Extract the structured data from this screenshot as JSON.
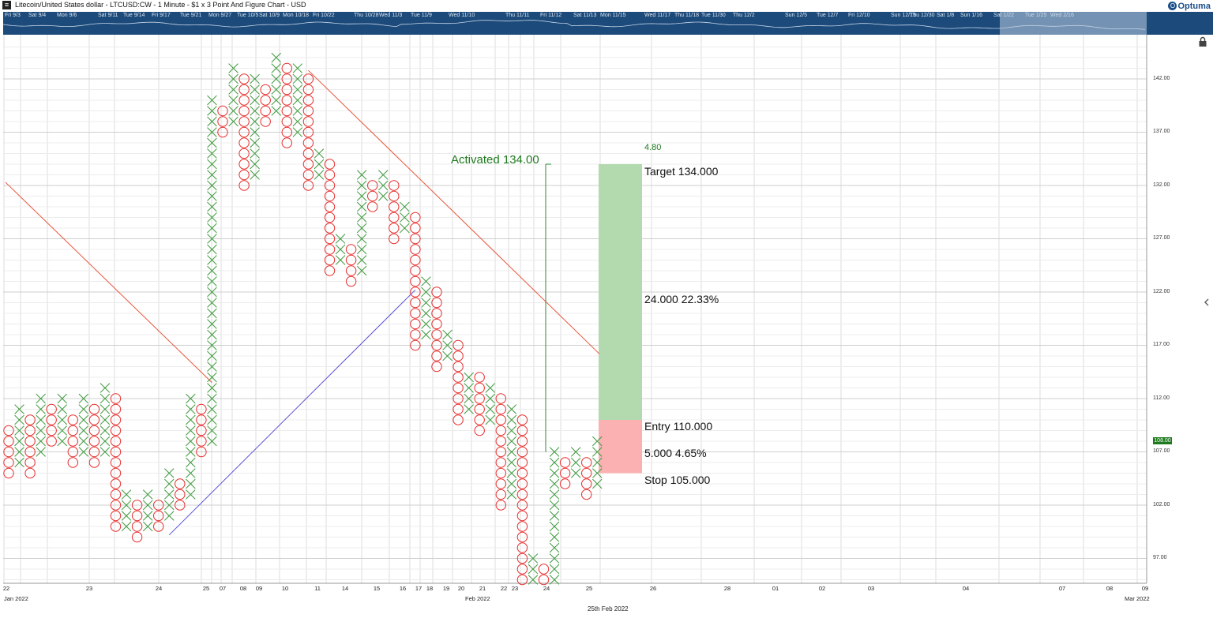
{
  "header": {
    "title": "Litecoin/United States dollar - LTCUSD:CW - 1 Minute - $1 x 3 Point And Figure Chart - USD",
    "brand": "Optuma",
    "app_icon": "menu-icon"
  },
  "navigator": {
    "dates": [
      "Fri 9/3",
      "Sat 9/4",
      "Mon 9/6",
      "Sat 9/11",
      "Tue 9/14",
      "Fri 9/17",
      "Tue 9/21",
      "Mon 9/27",
      "Tue 10/5",
      "Sat 10/9",
      "Mon 10/18",
      "Fri 10/22",
      "Thu 10/28",
      "Wed 11/3",
      "Tue 11/9",
      "Wed 11/10",
      "Thu 11/11",
      "Fri 11/12",
      "Sat 11/13",
      "Mon 11/15",
      "Wed 11/17",
      "Thu 11/18",
      "Tue 11/30",
      "Thu 12/2",
      "Sun 12/5",
      "Tue 12/7",
      "Fri 12/10",
      "Sun 12/19",
      "Thu 12/30",
      "Sat 1/8",
      "Sun 1/16",
      "Sat 1/22",
      "Tue 1/25",
      "Wed 2/16"
    ]
  },
  "chart_data": {
    "type": "point_and_figure",
    "symbol": "LTCUSD:CW",
    "box_size": 1,
    "reversal": 3,
    "ylim": [
      95,
      145
    ],
    "y_ticks": [
      97.0,
      102.0,
      107.0,
      112.0,
      117.0,
      122.0,
      127.0,
      132.0,
      137.0,
      142.0
    ],
    "x_tick_labels": [
      "22",
      "23",
      "24",
      "25",
      "07",
      "08",
      "09",
      "10",
      "11",
      "14",
      "15",
      "16",
      "17",
      "18",
      "19",
      "20",
      "21",
      "22",
      "23",
      "24",
      "25",
      "26",
      "28",
      "01",
      "02",
      "03",
      "04",
      "07",
      "08",
      "09"
    ],
    "month_labels": [
      "Jan 2022",
      "Feb 2022",
      "Mar 2022"
    ],
    "date_caption": "25th Feb 2022",
    "last_price": "108.00",
    "columns": [
      {
        "type": "O",
        "high": 109,
        "low": 105
      },
      {
        "type": "X",
        "high": 111,
        "low": 106
      },
      {
        "type": "O",
        "high": 110,
        "low": 105
      },
      {
        "type": "X",
        "high": 112,
        "low": 107
      },
      {
        "type": "O",
        "high": 111,
        "low": 108
      },
      {
        "type": "X",
        "high": 112,
        "low": 108
      },
      {
        "type": "O",
        "high": 110,
        "low": 106
      },
      {
        "type": "X",
        "high": 112,
        "low": 107
      },
      {
        "type": "O",
        "high": 111,
        "low": 106
      },
      {
        "type": "X",
        "high": 113,
        "low": 107
      },
      {
        "type": "O",
        "high": 112,
        "low": 100
      },
      {
        "type": "X",
        "high": 103,
        "low": 100
      },
      {
        "type": "O",
        "high": 102,
        "low": 99
      },
      {
        "type": "X",
        "high": 103,
        "low": 100
      },
      {
        "type": "O",
        "high": 102,
        "low": 100
      },
      {
        "type": "X",
        "high": 105,
        "low": 101
      },
      {
        "type": "O",
        "high": 104,
        "low": 102
      },
      {
        "type": "X",
        "high": 112,
        "low": 103
      },
      {
        "type": "O",
        "high": 111,
        "low": 107
      },
      {
        "type": "X",
        "high": 140,
        "low": 108
      },
      {
        "type": "O",
        "high": 139,
        "low": 137
      },
      {
        "type": "X",
        "high": 143,
        "low": 138
      },
      {
        "type": "O",
        "high": 142,
        "low": 132
      },
      {
        "type": "X",
        "high": 142,
        "low": 133
      },
      {
        "type": "O",
        "high": 141,
        "low": 138
      },
      {
        "type": "X",
        "high": 144,
        "low": 139
      },
      {
        "type": "O",
        "high": 143,
        "low": 136
      },
      {
        "type": "X",
        "high": 143,
        "low": 137
      },
      {
        "type": "O",
        "high": 142,
        "low": 132
      },
      {
        "type": "X",
        "high": 135,
        "low": 133
      },
      {
        "type": "O",
        "high": 134,
        "low": 124
      },
      {
        "type": "X",
        "high": 127,
        "low": 125
      },
      {
        "type": "O",
        "high": 126,
        "low": 123
      },
      {
        "type": "X",
        "high": 133,
        "low": 124
      },
      {
        "type": "O",
        "high": 132,
        "low": 130
      },
      {
        "type": "X",
        "high": 133,
        "low": 131
      },
      {
        "type": "O",
        "high": 132,
        "low": 127
      },
      {
        "type": "X",
        "high": 130,
        "low": 128
      },
      {
        "type": "O",
        "high": 129,
        "low": 117
      },
      {
        "type": "X",
        "high": 123,
        "low": 118
      },
      {
        "type": "O",
        "high": 122,
        "low": 115
      },
      {
        "type": "X",
        "high": 118,
        "low": 116
      },
      {
        "type": "O",
        "high": 117,
        "low": 110
      },
      {
        "type": "X",
        "high": 114,
        "low": 111
      },
      {
        "type": "O",
        "high": 114,
        "low": 109
      },
      {
        "type": "X",
        "high": 113,
        "low": 110
      },
      {
        "type": "O",
        "high": 112,
        "low": 102
      },
      {
        "type": "X",
        "high": 111,
        "low": 103
      },
      {
        "type": "O",
        "high": 110,
        "low": 94
      },
      {
        "type": "X",
        "high": 97,
        "low": 95
      },
      {
        "type": "O",
        "high": 96,
        "low": 94
      },
      {
        "type": "X",
        "high": 107,
        "low": 95
      },
      {
        "type": "O",
        "high": 106,
        "low": 104
      },
      {
        "type": "X",
        "high": 107,
        "low": 105
      },
      {
        "type": "O",
        "high": 106,
        "low": 103
      },
      {
        "type": "X",
        "high": 108,
        "low": 104
      }
    ],
    "trendlines": [
      {
        "color": "#e8553a",
        "from": {
          "col": -0.3,
          "price": 132.3
        },
        "to": {
          "col": 19,
          "price": 113.5
        }
      },
      {
        "color": "#e8553a",
        "from": {
          "col": 28,
          "price": 142.8
        },
        "to": {
          "col": 55.2,
          "price": 116.2
        }
      },
      {
        "color": "#5a52d6",
        "from": {
          "col": 15,
          "price": 99.2
        },
        "to": {
          "col": 38,
          "price": 122.2
        }
      }
    ],
    "trade": {
      "activated_label": "Activated 134.00",
      "reward_label": "4.80",
      "target_label": "Target  134.000",
      "reward_range_label": "24.000  22.33%",
      "entry_label": "Entry  110.000",
      "risk_range_label": "5.000  4.65%",
      "stop_label": "Stop  105.000",
      "target": 134,
      "entry": 110,
      "stop": 105,
      "reward_color": "#b3d9ae",
      "risk_color": "#fbb1b1"
    },
    "colors": {
      "x": "#3f9a3f",
      "o": "#e83030",
      "grid": "#dcdcdc"
    }
  }
}
